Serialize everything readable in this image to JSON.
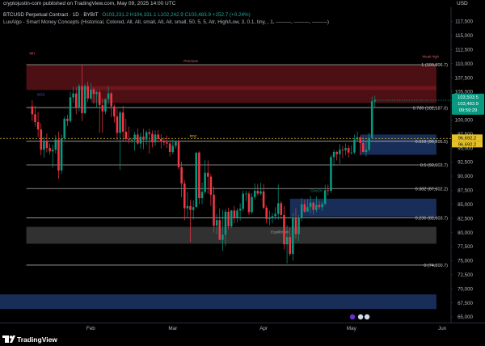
{
  "header": {
    "publisher": "cryptojustin-com published on TradingView.com, May 09, 2025 14:00 UTC",
    "currency": "USD"
  },
  "legend": {
    "symbol": "BTCUSD Perpetual Contract · 1D · BYBIT",
    "ohlc": "O103,231.2 H104,331.1 L102,242.9 C103,483.9 +252.7 (+0.24%)",
    "indicator": "LuxAlgo - Smart Money Concepts (Historical, Colored, All, All, small, All, All, small, 50, 5, 5, Atr, High/Low, 3, 0.1, tiny, , 1, ———, ———, ———)"
  },
  "footer": {
    "brand": "TradingView"
  },
  "colors": {
    "bg": "#000000",
    "up": "#089981",
    "down": "#f23645",
    "grid": "#2a2e39",
    "premium": "#8b1c25",
    "discount": "#1e3a6e",
    "poc": "#e6c229"
  },
  "chart_data": {
    "type": "candlestick",
    "symbol": "BTCUSD Perpetual Contract",
    "interval": "1D",
    "exchange": "BYBIT",
    "ylim": [
      64000,
      120000
    ],
    "y_ticks": [
      65000,
      67500,
      70000,
      72500,
      75000,
      77500,
      80000,
      82500,
      85000,
      87500,
      90000,
      92500,
      95000,
      97500,
      100000,
      102500,
      105000,
      107500,
      110000,
      112500,
      115000,
      117500
    ],
    "x_labels": [
      {
        "label": "Feb",
        "day": 32
      },
      {
        "label": "Mar",
        "day": 60
      },
      {
        "label": "Apr",
        "day": 91
      },
      {
        "label": "May",
        "day": 121
      },
      {
        "label": "Jun",
        "day": 152
      }
    ],
    "x_range": [
      1,
      155
    ],
    "candles": [
      [
        102400,
        103500,
        99800,
        101000
      ],
      [
        101000,
        102500,
        98800,
        99600
      ],
      [
        99600,
        101400,
        96900,
        98300
      ],
      [
        98300,
        99400,
        93700,
        94700
      ],
      [
        94700,
        97000,
        93300,
        96300
      ],
      [
        96300,
        97600,
        94200,
        95000
      ],
      [
        95000,
        95800,
        93900,
        94400
      ],
      [
        94400,
        95600,
        91500,
        94700
      ],
      [
        94700,
        97300,
        94000,
        96500
      ],
      [
        96500,
        97900,
        89500,
        91000
      ],
      [
        91000,
        97400,
        90400,
        96700
      ],
      [
        96700,
        100600,
        96400,
        100200
      ],
      [
        100200,
        100900,
        98900,
        99800
      ],
      [
        99800,
        105000,
        99500,
        104000
      ],
      [
        104000,
        105900,
        103100,
        104700
      ],
      [
        104700,
        105900,
        101000,
        102100
      ],
      [
        102100,
        106400,
        101500,
        106000
      ],
      [
        106000,
        109800,
        99800,
        101200
      ],
      [
        101200,
        106400,
        101000,
        106000
      ],
      [
        106000,
        106800,
        103200,
        103800
      ],
      [
        103800,
        106500,
        103600,
        105400
      ],
      [
        105400,
        105700,
        102900,
        104600
      ],
      [
        104600,
        105200,
        102100,
        104900
      ],
      [
        104900,
        105300,
        97700,
        102600
      ],
      [
        102600,
        103800,
        97700,
        101500
      ],
      [
        101500,
        103800,
        101000,
        103700
      ],
      [
        103700,
        106000,
        102700,
        104700
      ],
      [
        104700,
        105000,
        100500,
        102400
      ],
      [
        102400,
        102700,
        99500,
        100600
      ],
      [
        100600,
        102000,
        96400,
        97700
      ],
      [
        97700,
        101700,
        91100,
        101300
      ],
      [
        101300,
        102500,
        96200,
        97900
      ],
      [
        97900,
        100200,
        96200,
        96600
      ],
      [
        96600,
        98800,
        95800,
        96500
      ],
      [
        96500,
        96800,
        95900,
        96500
      ],
      [
        96500,
        97900,
        94500,
        97400
      ],
      [
        97400,
        98500,
        95600,
        95800
      ],
      [
        95800,
        97700,
        94900,
        97000
      ],
      [
        97000,
        98400,
        94800,
        96500
      ],
      [
        96500,
        98100,
        95600,
        97800
      ],
      [
        97800,
        98400,
        94000,
        97500
      ],
      [
        97500,
        98100,
        95100,
        96000
      ],
      [
        96000,
        98100,
        95400,
        97400
      ],
      [
        97400,
        98200,
        96000,
        96600
      ],
      [
        96600,
        97400,
        94900,
        96200
      ],
      [
        96200,
        96900,
        95400,
        96000
      ],
      [
        96000,
        97200,
        95000,
        95800
      ],
      [
        95800,
        96400,
        93500,
        94300
      ],
      [
        94300,
        96500,
        93900,
        95400
      ],
      [
        95400,
        96300,
        94900,
        96100
      ],
      [
        96100,
        96500,
        91200,
        91600
      ],
      [
        91600,
        92600,
        86300,
        88700
      ],
      [
        88700,
        89300,
        82200,
        84300
      ],
      [
        84300,
        87200,
        82700,
        84700
      ],
      [
        84700,
        85800,
        78300,
        84000
      ],
      [
        84000,
        85700,
        82300,
        84500
      ],
      [
        84500,
        94100,
        84500,
        94200
      ],
      [
        94200,
        94400,
        85000,
        86100
      ],
      [
        86100,
        88900,
        85000,
        87200
      ],
      [
        87200,
        92900,
        86900,
        90600
      ],
      [
        90600,
        92800,
        86900,
        89900
      ],
      [
        89900,
        90400,
        84700,
        86700
      ],
      [
        86700,
        88200,
        80000,
        81200
      ],
      [
        81200,
        83300,
        79700,
        82200
      ],
      [
        82200,
        84300,
        78700,
        78700
      ],
      [
        78700,
        84000,
        76700,
        79600
      ],
      [
        79600,
        84200,
        77600,
        83700
      ],
      [
        83700,
        84400,
        80600,
        81100
      ],
      [
        81100,
        84000,
        80800,
        83900
      ],
      [
        83900,
        84700,
        81600,
        82600
      ],
      [
        82600,
        84300,
        81800,
        83900
      ],
      [
        83900,
        85200,
        82100,
        84200
      ],
      [
        84200,
        87400,
        83800,
        86900
      ],
      [
        86900,
        87400,
        85600,
        86900
      ],
      [
        86900,
        87300,
        83100,
        83600
      ],
      [
        83600,
        87000,
        83300,
        86300
      ],
      [
        86300,
        88700,
        85800,
        87400
      ],
      [
        87400,
        88600,
        86500,
        86900
      ],
      [
        86900,
        88800,
        86600,
        87300
      ],
      [
        87300,
        88600,
        84100,
        84400
      ],
      [
        84400,
        84800,
        81600,
        82400
      ],
      [
        82400,
        83900,
        81300,
        82700
      ],
      [
        82700,
        83500,
        81600,
        82900
      ],
      [
        82900,
        84500,
        82300,
        83300
      ],
      [
        83300,
        88500,
        82300,
        85200
      ],
      [
        85200,
        85600,
        82400,
        83100
      ],
      [
        83100,
        84700,
        77000,
        77900
      ],
      [
        77900,
        81300,
        74500,
        79200
      ],
      [
        79200,
        80800,
        75800,
        76200
      ],
      [
        76200,
        83500,
        75000,
        82600
      ],
      [
        82600,
        84300,
        78800,
        79700
      ],
      [
        79700,
        83100,
        78500,
        82600
      ],
      [
        82600,
        86100,
        82000,
        85000
      ],
      [
        85000,
        85800,
        83500,
        83700
      ],
      [
        83700,
        85900,
        83700,
        84500
      ],
      [
        84500,
        86500,
        83400,
        85300
      ],
      [
        85300,
        85500,
        83200,
        84000
      ],
      [
        84000,
        86400,
        83600,
        84900
      ],
      [
        84900,
        85600,
        84100,
        84500
      ],
      [
        84500,
        85500,
        83800,
        85100
      ],
      [
        85100,
        88500,
        84800,
        87500
      ],
      [
        87500,
        88500,
        86600,
        87400
      ],
      [
        87400,
        93800,
        87000,
        93400
      ],
      [
        93400,
        94700,
        91800,
        94300
      ],
      [
        94300,
        94500,
        92800,
        93900
      ],
      [
        93900,
        95700,
        92200,
        94700
      ],
      [
        94700,
        95400,
        93200,
        94600
      ],
      [
        94600,
        95800,
        93700,
        95000
      ],
      [
        95000,
        95500,
        93300,
        94200
      ],
      [
        94200,
        95500,
        93800,
        94200
      ],
      [
        94200,
        97400,
        93900,
        96500
      ],
      [
        96500,
        97900,
        96200,
        96900
      ],
      [
        96900,
        97100,
        93700,
        95900
      ],
      [
        95900,
        96900,
        94400,
        94300
      ],
      [
        94300,
        96000,
        93500,
        94700
      ],
      [
        94700,
        97700,
        94400,
        96800
      ],
      [
        96800,
        104100,
        96600,
        103300
      ],
      [
        103300,
        104300,
        102200,
        103500
      ]
    ],
    "levels": [
      {
        "label": "1 (109,806.7)",
        "value": 109806.7
      },
      {
        "label": "0.786 (102,187.0)",
        "value": 102187.0
      },
      {
        "label": "0.618 (96,205.5)",
        "value": 96205.5
      },
      {
        "label": "0.5 (92,003.7)",
        "value": 92003.7
      },
      {
        "label": "0.382 (87,802.2)",
        "value": 87802.2
      },
      {
        "label": "0.236 (82,603.7)",
        "value": 82603.7
      },
      {
        "label": "0 (74,200.7)",
        "value": 74200.7
      }
    ],
    "zones": [
      {
        "name": "Premium",
        "from": 105300,
        "to": 109800,
        "color": "#8b1c25"
      },
      {
        "name": "",
        "from": 103000,
        "to": 106000,
        "color": "#8b1c25"
      },
      {
        "name": "Equilibrium",
        "from": 78000,
        "to": 81000,
        "color": "#3a3a3a"
      },
      {
        "name": "",
        "from": 82800,
        "to": 86000,
        "color": "#1e3a6e"
      },
      {
        "name": "",
        "from": 93800,
        "to": 97400,
        "color": "#1e3a6e"
      },
      {
        "name": "",
        "from": 66400,
        "to": 69000,
        "color": "#1e3a6e"
      }
    ],
    "annotations": [
      "WH",
      "Premium",
      "Weak High",
      "BOS",
      "POC",
      "Equilibrium",
      "CHoCH"
    ],
    "poc": 96700,
    "last_price": {
      "value": "103,503.5",
      "close": "103,483.9",
      "countdown": "09:59:29"
    },
    "price_tags": [
      "96,692.2",
      "96,692.2"
    ]
  }
}
